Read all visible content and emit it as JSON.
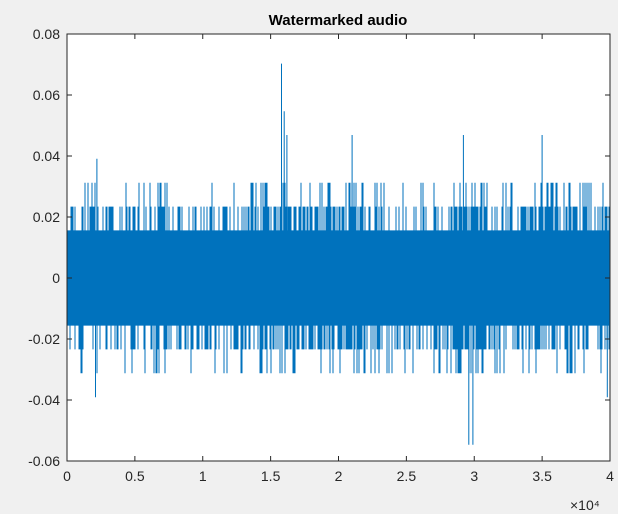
{
  "chart_data": {
    "type": "line",
    "title": "Watermarked audio",
    "xlabel": "",
    "ylabel": "",
    "xlim": [
      0,
      40000
    ],
    "ylim": [
      -0.06,
      0.08
    ],
    "x_ticks": [
      0,
      5000,
      10000,
      15000,
      20000,
      25000,
      30000,
      35000,
      40000
    ],
    "x_tick_labels": [
      "0",
      "0.5",
      "1",
      "1.5",
      "2",
      "2.5",
      "3",
      "3.5",
      "4"
    ],
    "x_exponent_label": "×10⁴",
    "y_ticks": [
      -0.06,
      -0.04,
      -0.02,
      0,
      0.02,
      0.04,
      0.06,
      0.08
    ],
    "y_tick_labels": [
      "-0.06",
      "-0.04",
      "-0.02",
      "0",
      "0.02",
      "0.04",
      "0.06",
      "0.08"
    ],
    "grid": false,
    "series": [
      {
        "color": "#0072BD",
        "num_samples": 40000,
        "dense_band": [
          -0.0156,
          0.0156
        ],
        "common_peaks": [
          0.0234,
          -0.0234
        ],
        "notable_peaks": [
          {
            "x": 15800,
            "y": 0.0703
          },
          {
            "x": 16000,
            "y": 0.0547
          },
          {
            "x": 29600,
            "y": -0.0547
          },
          {
            "x": 29900,
            "y": -0.0547
          },
          {
            "x": 29200,
            "y": 0.0469
          },
          {
            "x": 2100,
            "y": -0.0391
          },
          {
            "x": 2200,
            "y": 0.0391
          },
          {
            "x": 16200,
            "y": 0.0469
          },
          {
            "x": 21000,
            "y": 0.0469
          },
          {
            "x": 35000,
            "y": 0.0469
          },
          {
            "x": 39800,
            "y": -0.0391
          }
        ]
      }
    ]
  },
  "colors": {
    "background": "#f0f0f0",
    "axes_background": "#ffffff",
    "axis_line": "#262626",
    "line": "#0072BD"
  }
}
